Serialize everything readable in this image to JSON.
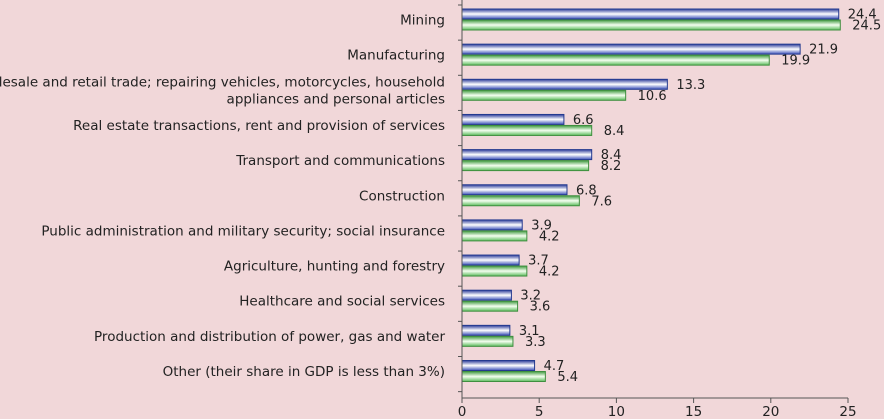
{
  "chart_data": {
    "type": "bar",
    "orientation": "horizontal",
    "title": "",
    "xlabel": "",
    "ylabel": "",
    "xlim": [
      0,
      25
    ],
    "xticks": [
      0,
      5,
      10,
      15,
      20,
      25
    ],
    "grid": false,
    "legend": "none",
    "categories": [
      [
        "Mining"
      ],
      [
        "Manufacturing"
      ],
      [
        "Wholesale and retail trade; repairing vehicles, motorcycles, household",
        "appliances and personal articles"
      ],
      [
        "Real estate transactions, rent and provision of services"
      ],
      [
        "Transport and communications"
      ],
      [
        "Construction"
      ],
      [
        "Public administration and military security; social insurance"
      ],
      [
        "Agriculture, hunting and forestry"
      ],
      [
        "Healthcare and social services"
      ],
      [
        "Production and distribution of power, gas and water"
      ],
      [
        "Other (their share in GDP is less than 3%)"
      ]
    ],
    "series": [
      {
        "name": "series-1",
        "color": "#5b6fc8",
        "values": [
          24.4,
          21.9,
          13.3,
          6.6,
          8.4,
          6.8,
          3.9,
          3.7,
          3.2,
          3.1,
          4.7
        ]
      },
      {
        "name": "series-2",
        "color": "#8fd28a",
        "values": [
          24.5,
          19.9,
          10.6,
          8.4,
          8.2,
          7.6,
          4.2,
          4.2,
          3.6,
          3.3,
          5.4
        ]
      }
    ]
  }
}
